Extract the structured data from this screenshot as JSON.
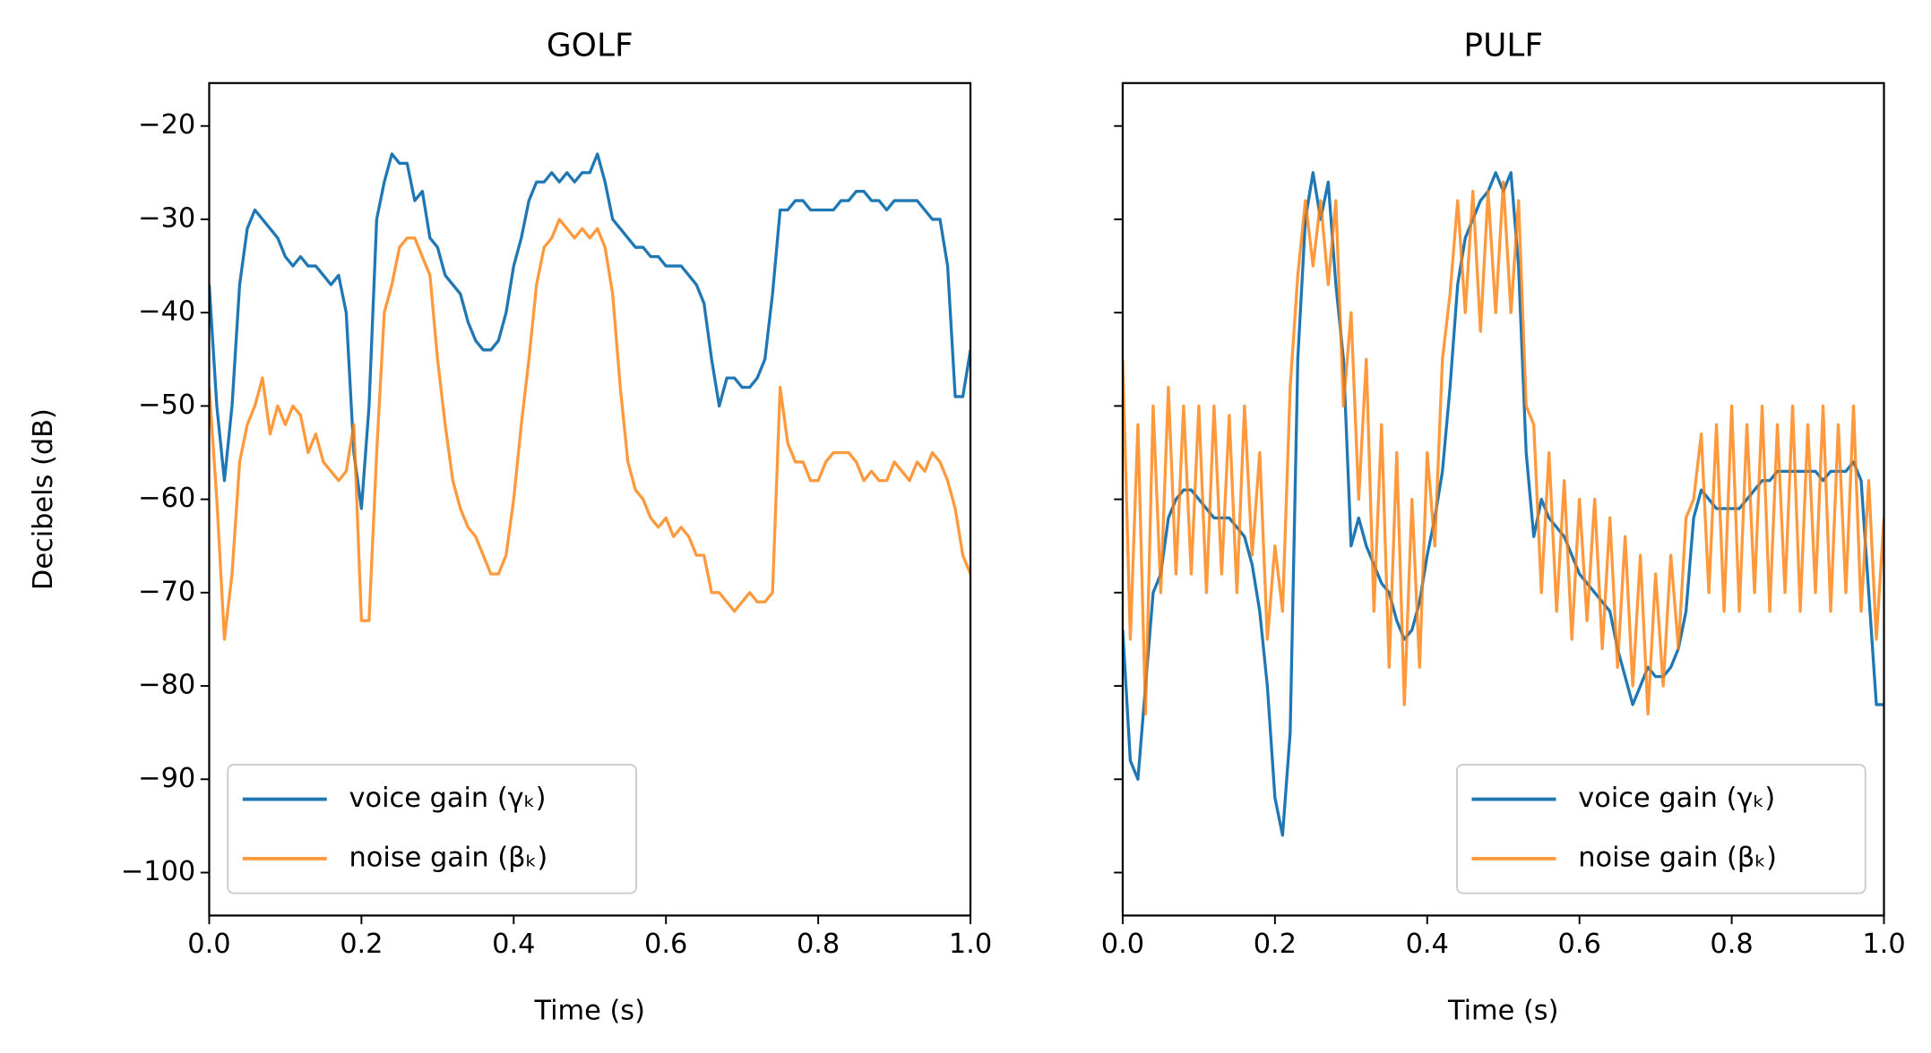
{
  "chart_data": [
    {
      "type": "line",
      "title": "GOLF",
      "xlabel": "Time (s)",
      "ylabel": "Decibels (dB)",
      "legend": "lower left",
      "xlim": [
        0,
        1
      ],
      "ylim": [
        -104.6,
        -15.4
      ],
      "xticks": [
        {
          "value": 0,
          "label": "0.0"
        },
        0.2,
        0.4,
        0.6,
        0.8,
        {
          "value": 1,
          "label": "1.0"
        }
      ],
      "yticks": [
        {
          "value": -20,
          "label": "−20"
        },
        {
          "value": -30,
          "label": "−30"
        },
        {
          "value": -40,
          "label": "−40"
        },
        {
          "value": -50,
          "label": "−50"
        },
        {
          "value": -60,
          "label": "−60"
        },
        {
          "value": -70,
          "label": "−70"
        },
        {
          "value": -80,
          "label": "−80"
        },
        {
          "value": -90,
          "label": "−90"
        },
        {
          "value": -100,
          "label": "−100"
        }
      ],
      "x": [
        0,
        0.01,
        0.02,
        0.03,
        0.04,
        0.05,
        0.06,
        0.07,
        0.08,
        0.09,
        0.1,
        0.11,
        0.12,
        0.13,
        0.14,
        0.15,
        0.16,
        0.17,
        0.18,
        0.19,
        0.2,
        0.21,
        0.22,
        0.23,
        0.24,
        0.25,
        0.26,
        0.27,
        0.28,
        0.29,
        0.3,
        0.31,
        0.32,
        0.33,
        0.34,
        0.35,
        0.36,
        0.37,
        0.38,
        0.39,
        0.4,
        0.41,
        0.42,
        0.43,
        0.44,
        0.45,
        0.46,
        0.47,
        0.48,
        0.49,
        0.5,
        0.51,
        0.52,
        0.53,
        0.54,
        0.55,
        0.56,
        0.57,
        0.58,
        0.59,
        0.6,
        0.61,
        0.62,
        0.63,
        0.64,
        0.65,
        0.66,
        0.67,
        0.68,
        0.69,
        0.7,
        0.71,
        0.72,
        0.73,
        0.74,
        0.75,
        0.76,
        0.77,
        0.78,
        0.79,
        0.8,
        0.81,
        0.82,
        0.83,
        0.84,
        0.85,
        0.86,
        0.87,
        0.88,
        0.89,
        0.9,
        0.91,
        0.92,
        0.93,
        0.94,
        0.95,
        0.96,
        0.97,
        0.98,
        0.99,
        1
      ],
      "series": [
        {
          "name": "voice gain (γₖ)",
          "color": "#1f77b4",
          "opacity": 1,
          "values": [
            -37,
            -50,
            -58,
            -50,
            -37,
            -31,
            -29,
            -30,
            -31,
            -32,
            -34,
            -35,
            -34,
            -35,
            -35,
            -36,
            -37,
            -36,
            -40,
            -55,
            -61,
            -50,
            -30,
            -26,
            -23,
            -24,
            -24,
            -28,
            -27,
            -32,
            -33,
            -36,
            -37,
            -38,
            -41,
            -43,
            -44,
            -44,
            -43,
            -40,
            -35,
            -32,
            -28,
            -26,
            -26,
            -25,
            -26,
            -25,
            -26,
            -25,
            -25,
            -23,
            -26,
            -30,
            -31,
            -32,
            -33,
            -33,
            -34,
            -34,
            -35,
            -35,
            -35,
            -36,
            -37,
            -39,
            -45,
            -50,
            -47,
            -47,
            -48,
            -48,
            -47,
            -45,
            -38,
            -29,
            -29,
            -28,
            -28,
            -29,
            -29,
            -29,
            -29,
            -28,
            -28,
            -27,
            -27,
            -28,
            -28,
            -29,
            -28,
            -28,
            -28,
            -28,
            -29,
            -30,
            -30,
            -35,
            -49,
            -49,
            -44
          ]
        },
        {
          "name": "noise gain (βₖ)",
          "color": "#ff7f0e",
          "opacity": 0.8,
          "values": [
            -48,
            -60,
            -75,
            -68,
            -56,
            -52,
            -50,
            -47,
            -53,
            -50,
            -52,
            -50,
            -51,
            -55,
            -53,
            -56,
            -57,
            -58,
            -57,
            -52,
            -73,
            -73,
            -55,
            -40,
            -37,
            -33,
            -32,
            -32,
            -34,
            -36,
            -45,
            -52,
            -58,
            -61,
            -63,
            -64,
            -66,
            -68,
            -68,
            -66,
            -60,
            -52,
            -45,
            -37,
            -33,
            -32,
            -30,
            -31,
            -32,
            -31,
            -32,
            -31,
            -33,
            -38,
            -48,
            -56,
            -59,
            -60,
            -62,
            -63,
            -62,
            -64,
            -63,
            -64,
            -66,
            -66,
            -70,
            -70,
            -71,
            -72,
            -71,
            -70,
            -71,
            -71,
            -70,
            -48,
            -54,
            -56,
            -56,
            -58,
            -58,
            -56,
            -55,
            -55,
            -55,
            -56,
            -58,
            -57,
            -58,
            -58,
            -56,
            -57,
            -58,
            -56,
            -57,
            -55,
            -56,
            -58,
            -61,
            -66,
            -68
          ]
        }
      ]
    },
    {
      "type": "line",
      "title": "PULF",
      "xlabel": "Time (s)",
      "legend": "lower right",
      "sharey": true,
      "xlim": [
        0,
        1
      ],
      "ylim": [
        -104.6,
        -15.4
      ],
      "xticks": [
        {
          "value": 0,
          "label": "0.0"
        },
        0.2,
        0.4,
        0.6,
        0.8,
        {
          "value": 1,
          "label": "1.0"
        }
      ],
      "yticks": [
        -20,
        -30,
        -40,
        -50,
        -60,
        -70,
        -80,
        -90,
        -100
      ],
      "x": [
        0,
        0.01,
        0.02,
        0.03,
        0.04,
        0.05,
        0.06,
        0.07,
        0.08,
        0.09,
        0.1,
        0.11,
        0.12,
        0.13,
        0.14,
        0.15,
        0.16,
        0.17,
        0.18,
        0.19,
        0.2,
        0.21,
        0.22,
        0.23,
        0.24,
        0.25,
        0.26,
        0.27,
        0.28,
        0.29,
        0.3,
        0.31,
        0.32,
        0.33,
        0.34,
        0.35,
        0.36,
        0.37,
        0.38,
        0.39,
        0.4,
        0.41,
        0.42,
        0.43,
        0.44,
        0.45,
        0.46,
        0.47,
        0.48,
        0.49,
        0.5,
        0.51,
        0.52,
        0.53,
        0.54,
        0.55,
        0.56,
        0.57,
        0.58,
        0.59,
        0.6,
        0.61,
        0.62,
        0.63,
        0.64,
        0.65,
        0.66,
        0.67,
        0.68,
        0.69,
        0.7,
        0.71,
        0.72,
        0.73,
        0.74,
        0.75,
        0.76,
        0.77,
        0.78,
        0.79,
        0.8,
        0.81,
        0.82,
        0.83,
        0.84,
        0.85,
        0.86,
        0.87,
        0.88,
        0.89,
        0.9,
        0.91,
        0.92,
        0.93,
        0.94,
        0.95,
        0.96,
        0.97,
        0.98,
        0.99,
        1
      ],
      "series": [
        {
          "name": "voice gain (γₖ)",
          "color": "#1f77b4",
          "opacity": 1,
          "values": [
            -74,
            -88,
            -90,
            -80,
            -70,
            -68,
            -62,
            -60,
            -59,
            -59,
            -60,
            -61,
            -62,
            -62,
            -62,
            -63,
            -64,
            -67,
            -72,
            -80,
            -92,
            -96,
            -85,
            -45,
            -30,
            -25,
            -30,
            -26,
            -37,
            -45,
            -65,
            -62,
            -65,
            -67,
            -69,
            -70,
            -73,
            -75,
            -74,
            -71,
            -66,
            -62,
            -57,
            -48,
            -37,
            -32,
            -30,
            -28,
            -27,
            -25,
            -27,
            -25,
            -35,
            -55,
            -64,
            -60,
            -62,
            -63,
            -64,
            -66,
            -68,
            -69,
            -70,
            -71,
            -72,
            -76,
            -79,
            -82,
            -80,
            -78,
            -79,
            -79,
            -78,
            -76,
            -72,
            -62,
            -59,
            -60,
            -61,
            -61,
            -61,
            -61,
            -60,
            -59,
            -58,
            -58,
            -57,
            -57,
            -57,
            -57,
            -57,
            -57,
            -58,
            -57,
            -57,
            -57,
            -56,
            -58,
            -70,
            -82,
            -82
          ]
        },
        {
          "name": "noise gain (βₖ)",
          "color": "#ff7f0e",
          "opacity": 0.8,
          "values": [
            -45,
            -75,
            -52,
            -83,
            -50,
            -70,
            -48,
            -68,
            -50,
            -68,
            -50,
            -70,
            -50,
            -68,
            -51,
            -70,
            -50,
            -66,
            -55,
            -75,
            -65,
            -72,
            -48,
            -36,
            -28,
            -35,
            -28,
            -37,
            -28,
            -50,
            -40,
            -60,
            -45,
            -72,
            -52,
            -78,
            -55,
            -82,
            -60,
            -78,
            -55,
            -65,
            -45,
            -38,
            -28,
            -40,
            -27,
            -42,
            -27,
            -40,
            -26,
            -40,
            -28,
            -50,
            -52,
            -70,
            -55,
            -72,
            -58,
            -75,
            -60,
            -73,
            -60,
            -76,
            -62,
            -78,
            -64,
            -80,
            -66,
            -83,
            -68,
            -80,
            -66,
            -76,
            -62,
            -60,
            -53,
            -70,
            -52,
            -72,
            -50,
            -72,
            -52,
            -70,
            -50,
            -72,
            -52,
            -70,
            -50,
            -72,
            -52,
            -70,
            -50,
            -72,
            -52,
            -70,
            -50,
            -72,
            -58,
            -75,
            -62
          ]
        }
      ]
    }
  ]
}
